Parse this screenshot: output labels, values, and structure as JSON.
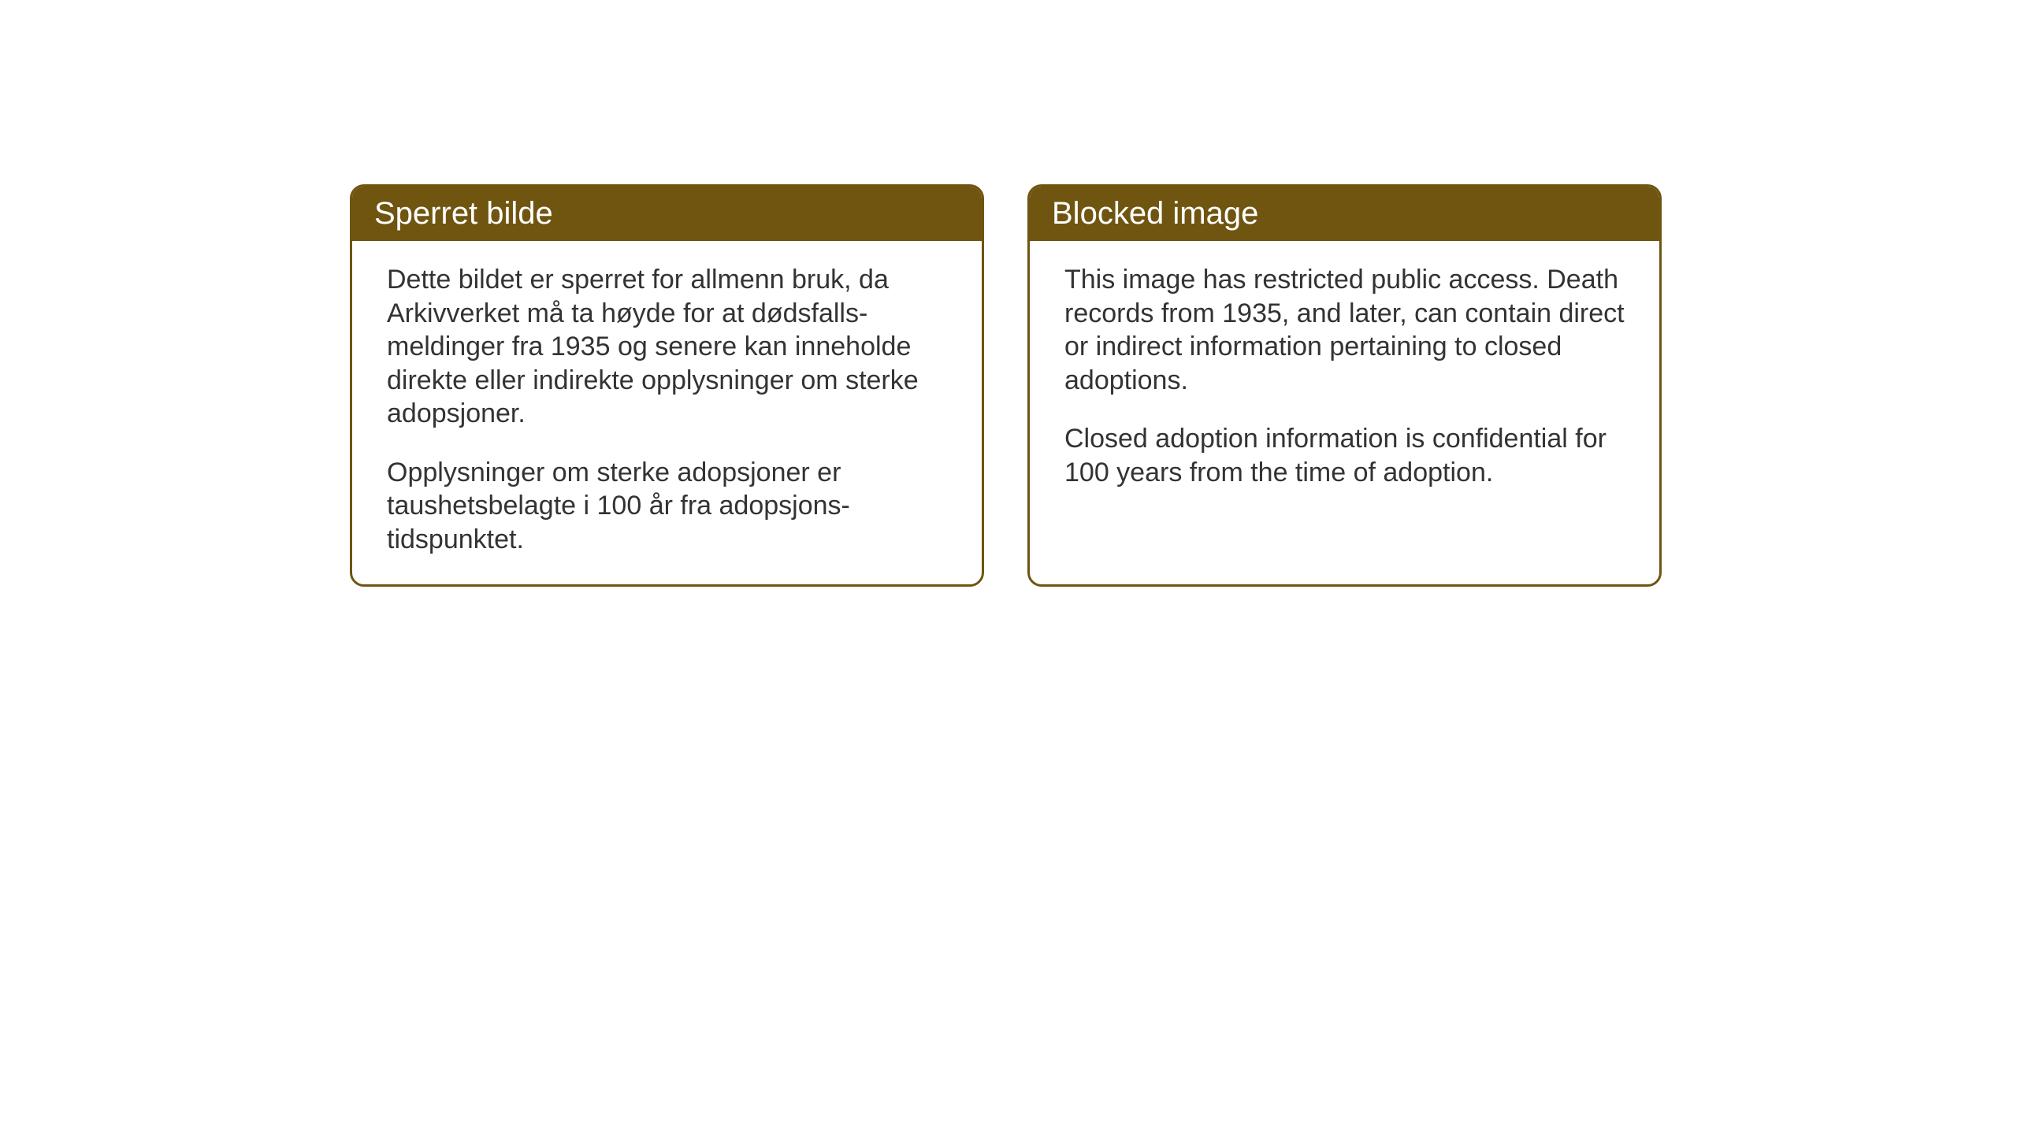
{
  "cards": [
    {
      "title": "Sperret bilde",
      "paragraph1": "Dette bildet er sperret for allmenn bruk, da Arkivverket må ta høyde for at dødsfalls-meldinger fra 1935 og senere kan inneholde direkte eller indirekte opplysninger om sterke adopsjoner.",
      "paragraph2": "Opplysninger om sterke adopsjoner er taushetsbelagte i 100 år fra adopsjons-tidspunktet."
    },
    {
      "title": "Blocked image",
      "paragraph1": "This image has restricted public access. Death records from 1935, and later, can contain direct or indirect information pertaining to closed adoptions.",
      "paragraph2": "Closed adoption information is confidential for 100 years from the time of adoption."
    }
  ],
  "styling": {
    "header_background_color": "#6f5510",
    "border_color": "#6f5510",
    "header_text_color": "#ffffff",
    "body_text_color": "#333333",
    "background_color": "#ffffff",
    "header_fontsize": 40,
    "body_fontsize": 34,
    "border_radius": 18,
    "border_width": 3
  }
}
